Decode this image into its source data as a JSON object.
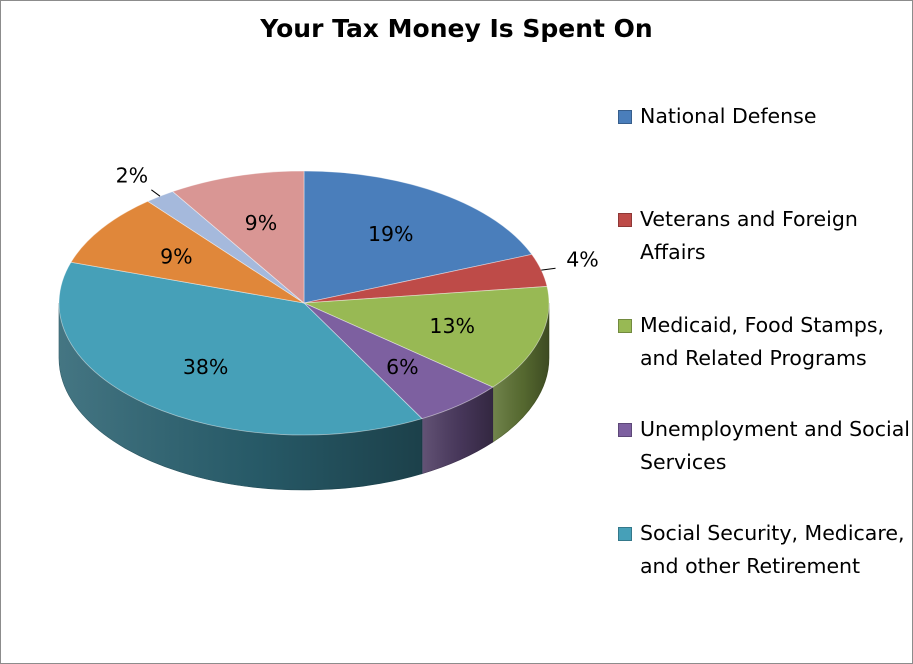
{
  "chart_data": {
    "type": "pie",
    "title": "Your Tax Money Is Spent On",
    "style": "3d",
    "legend_position": "right",
    "slices": [
      {
        "label": "National Defense",
        "value": 19,
        "display": "19%",
        "color": "#4a7ebb"
      },
      {
        "label": "Veterans and Foreign Affairs",
        "value": 4,
        "display": "4%",
        "color": "#be4b48"
      },
      {
        "label": "Medicaid, Food Stamps, and Related Programs",
        "value": 13,
        "display": "13%",
        "color": "#98b954"
      },
      {
        "label": "Unemployment and Social Services",
        "value": 6,
        "display": "6%",
        "color": "#7d60a0"
      },
      {
        "label": "Social Security, Medicare, and other Retirement",
        "value": 38,
        "display": "38%",
        "color": "#46a0b8"
      },
      {
        "label": "",
        "value": 9,
        "display": "9%",
        "color": "#e0873a"
      },
      {
        "label": "",
        "value": 2,
        "display": "2%",
        "color": "#a5b9dc"
      },
      {
        "label": "",
        "value": 9,
        "display": "9%",
        "color": "#d99694"
      }
    ],
    "legend": [
      {
        "label": "National Defense",
        "color": "#4a7ebb"
      },
      {
        "label": "Veterans and Foreign Affairs",
        "color": "#be4b48"
      },
      {
        "label": "Medicaid, Food Stamps, and Related Programs",
        "color": "#98b954"
      },
      {
        "label": "Unemployment and Social Services",
        "color": "#7d60a0"
      },
      {
        "label": "Social Security, Medicare, and other Retirement",
        "color": "#46a0b8"
      }
    ]
  }
}
